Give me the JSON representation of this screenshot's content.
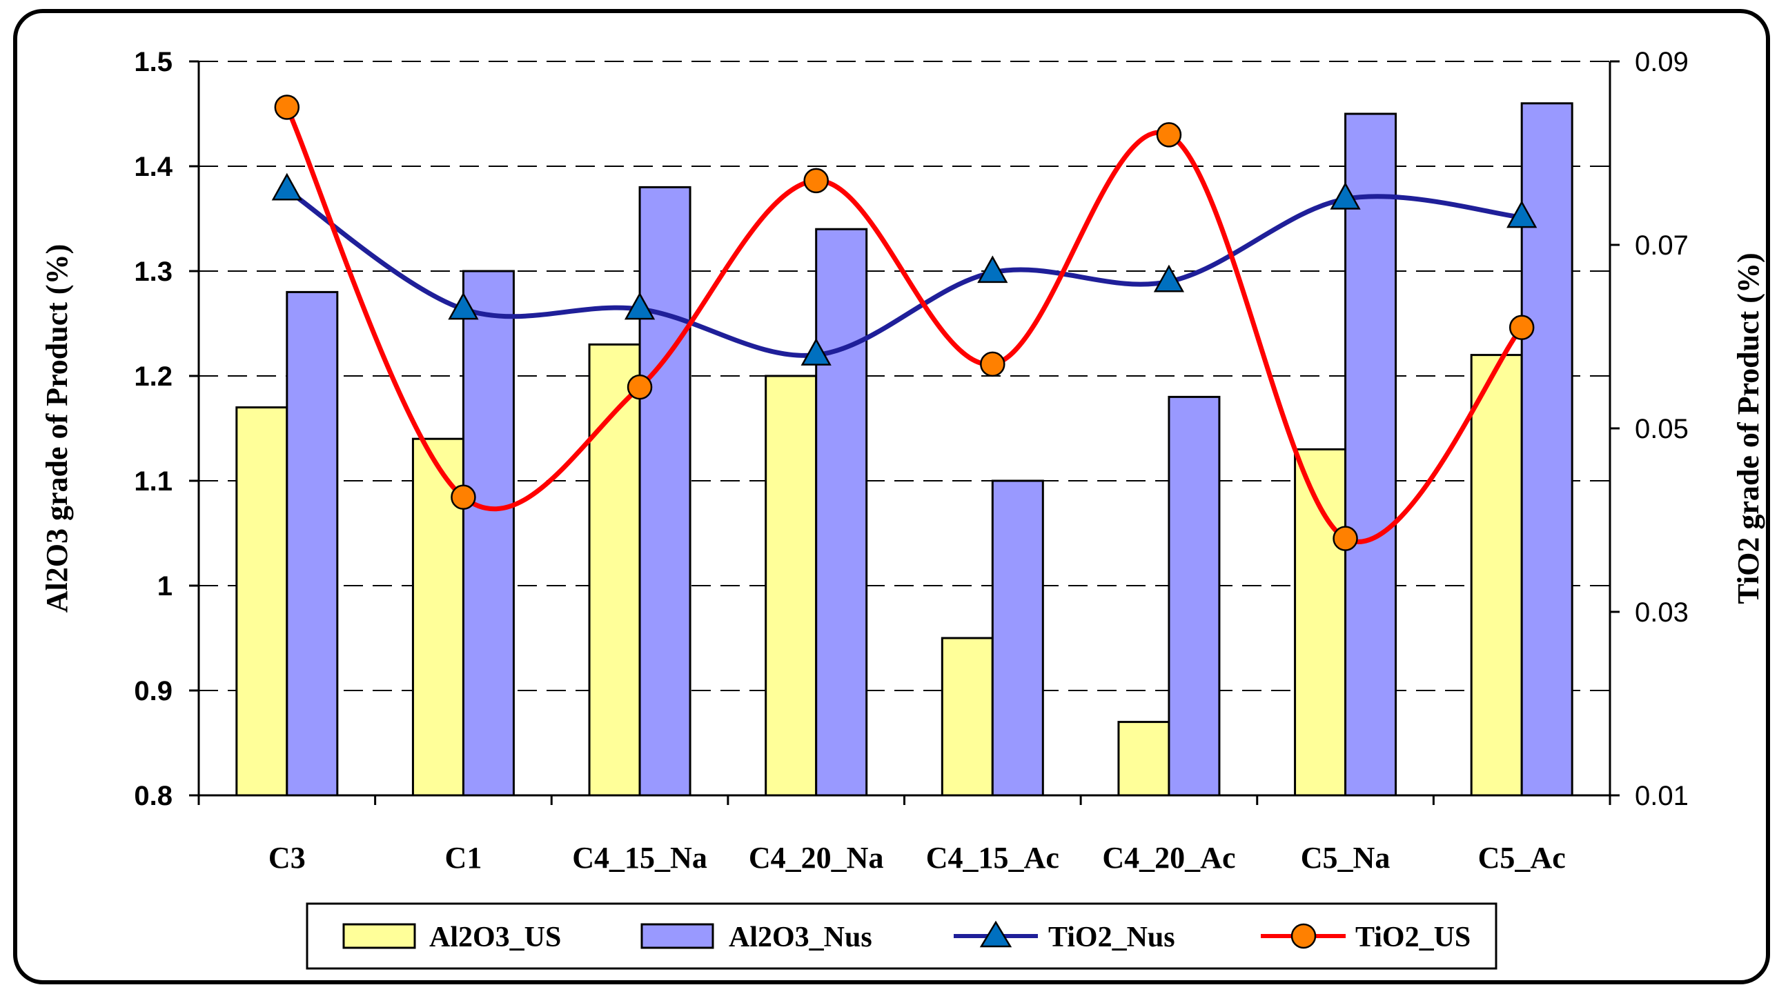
{
  "chart_data": {
    "type": "bar",
    "title": "",
    "categories": [
      "C3",
      "C1",
      "C4_15_Na",
      "C4_20_Na",
      "C4_15_Ac",
      "C4_20_Ac",
      "C5_Na",
      "C5_Ac"
    ],
    "series": [
      {
        "name": "Al2O3_US",
        "kind": "bar",
        "axis": "left",
        "color": "#FFFF99",
        "values": [
          1.17,
          1.14,
          1.23,
          1.2,
          0.95,
          0.87,
          1.13,
          1.22
        ]
      },
      {
        "name": "Al2O3_Nus",
        "kind": "bar",
        "axis": "left",
        "color": "#9999FF",
        "values": [
          1.28,
          1.3,
          1.38,
          1.34,
          1.1,
          1.18,
          1.45,
          1.46
        ]
      },
      {
        "name": "TiO2_Nus",
        "kind": "line",
        "axis": "right",
        "color": "#1F1F99",
        "marker": "triangle",
        "marker_color": "#0070C0",
        "values": [
          0.076,
          0.063,
          0.063,
          0.058,
          0.067,
          0.066,
          0.075,
          0.073
        ]
      },
      {
        "name": "TiO2_US",
        "kind": "line",
        "axis": "right",
        "color": "#FF0000",
        "marker": "circle",
        "marker_color": "#FF8000",
        "values": [
          0.085,
          0.0425,
          0.0545,
          0.077,
          0.057,
          0.082,
          0.038,
          0.061
        ]
      }
    ],
    "y_left": {
      "label": "Al2O3 grade of Product (%)",
      "min": 0.8,
      "max": 1.5,
      "ticks": [
        0.8,
        0.9,
        1,
        1.1,
        1.2,
        1.3,
        1.4,
        1.5
      ]
    },
    "y_right": {
      "label": "TiO2 grade of Product (%)",
      "min": 0.01,
      "max": 0.09,
      "ticks": [
        0.01,
        0.03,
        0.05,
        0.07,
        0.09
      ]
    },
    "legend": {
      "position": "bottom",
      "entries": [
        "Al2O3_US",
        "Al2O3_Nus",
        "TiO2_Nus",
        "TiO2_US"
      ]
    },
    "grid": "dashed horizontal"
  }
}
